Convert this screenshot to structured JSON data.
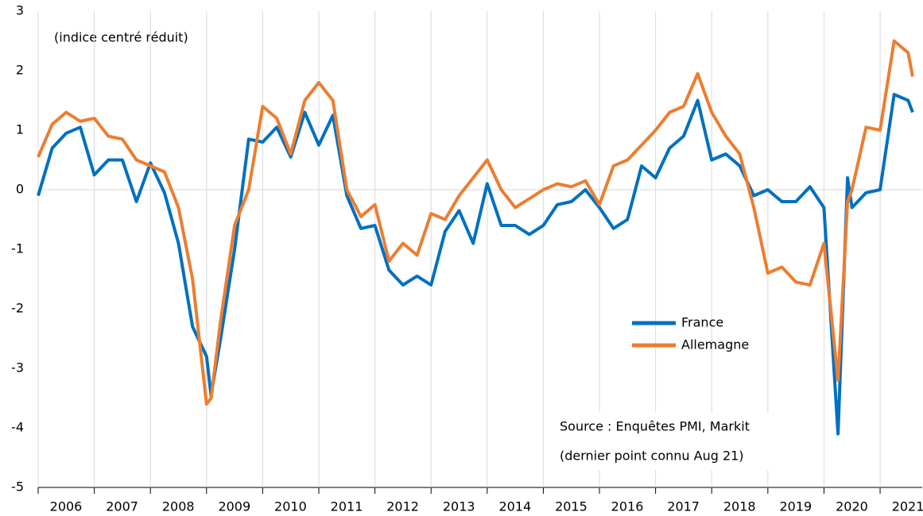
{
  "chart_data": {
    "type": "line",
    "annotations": [
      "(indice centré réduit)",
      "Source : Enquêtes PMI, Markit",
      "(dernier point connu Aug 21)"
    ],
    "x": [
      2006,
      2006.25,
      2006.5,
      2006.75,
      2007,
      2007.25,
      2007.5,
      2007.75,
      2008,
      2008.25,
      2008.5,
      2008.75,
      2009,
      2009.08,
      2009.25,
      2009.5,
      2009.75,
      2010,
      2010.25,
      2010.5,
      2010.75,
      2011,
      2011.25,
      2011.5,
      2011.75,
      2012,
      2012.25,
      2012.5,
      2012.75,
      2013,
      2013.25,
      2013.5,
      2013.75,
      2014,
      2014.25,
      2014.5,
      2014.75,
      2015,
      2015.25,
      2015.5,
      2015.75,
      2016,
      2016.25,
      2016.5,
      2016.75,
      2017,
      2017.25,
      2017.5,
      2017.75,
      2018,
      2018.25,
      2018.5,
      2018.75,
      2019,
      2019.25,
      2019.5,
      2019.75,
      2020,
      2020.25,
      2020.42,
      2020.5,
      2020.75,
      2021,
      2021.25,
      2021.5,
      2021.58
    ],
    "series": [
      {
        "name": "France",
        "color": "#0070c0",
        "values": [
          -0.1,
          0.7,
          0.95,
          1.05,
          0.25,
          0.5,
          0.5,
          -0.2,
          0.45,
          -0.05,
          -0.9,
          -2.3,
          -2.8,
          -3.45,
          -2.5,
          -1.0,
          0.85,
          0.8,
          1.05,
          0.55,
          1.3,
          0.75,
          1.25,
          -0.1,
          -0.65,
          -0.6,
          -1.35,
          -1.6,
          -1.45,
          -1.6,
          -0.7,
          -0.35,
          -0.9,
          0.1,
          -0.6,
          -0.6,
          -0.75,
          -0.6,
          -0.25,
          -0.2,
          0.0,
          -0.3,
          -0.65,
          -0.5,
          0.4,
          0.2,
          0.7,
          0.9,
          1.5,
          0.5,
          0.6,
          0.4,
          -0.1,
          0.0,
          -0.2,
          -0.2,
          0.05,
          -0.3,
          -4.1,
          0.2,
          -0.3,
          -0.05,
          0.0,
          1.6,
          1.5,
          1.3
        ]
      },
      {
        "name": "Allemagne",
        "color": "#ed7d31",
        "values": [
          0.55,
          1.1,
          1.3,
          1.15,
          1.2,
          0.9,
          0.85,
          0.5,
          0.4,
          0.3,
          -0.3,
          -1.5,
          -3.6,
          -3.5,
          -2.2,
          -0.6,
          0.0,
          1.4,
          1.2,
          0.6,
          1.5,
          1.8,
          1.5,
          0.0,
          -0.45,
          -0.25,
          -1.2,
          -0.9,
          -1.1,
          -0.4,
          -0.5,
          -0.1,
          0.2,
          0.5,
          0.0,
          -0.3,
          -0.15,
          0.0,
          0.1,
          0.05,
          0.15,
          -0.25,
          0.4,
          0.5,
          0.75,
          1.0,
          1.3,
          1.4,
          1.95,
          1.3,
          0.9,
          0.6,
          -0.3,
          -1.4,
          -1.3,
          -1.55,
          -1.6,
          -0.9,
          -3.2,
          -0.2,
          0.0,
          1.05,
          1.0,
          2.5,
          2.3,
          1.9
        ]
      }
    ],
    "xlim": [
      2006,
      2021.75
    ],
    "xticks": [
      {
        "value": 2006,
        "label": "2006"
      },
      {
        "value": 2007,
        "label": "2007"
      },
      {
        "value": 2008,
        "label": "2008"
      },
      {
        "value": 2009,
        "label": "2009"
      },
      {
        "value": 2010,
        "label": "2010"
      },
      {
        "value": 2011,
        "label": "2011"
      },
      {
        "value": 2012,
        "label": "2012"
      },
      {
        "value": 2013,
        "label": "2013"
      },
      {
        "value": 2014,
        "label": "2014"
      },
      {
        "value": 2015,
        "label": "2015"
      },
      {
        "value": 2016,
        "label": "2016"
      },
      {
        "value": 2017,
        "label": "2017"
      },
      {
        "value": 2018,
        "label": "2018"
      },
      {
        "value": 2019,
        "label": "2019"
      },
      {
        "value": 2020,
        "label": "2020"
      },
      {
        "value": 2021,
        "label": "2021"
      }
    ],
    "ylim": [
      -5,
      3
    ],
    "yticks": [
      -5,
      -4,
      -3,
      -2,
      -1,
      0,
      1,
      2,
      3
    ],
    "grid": true
  }
}
